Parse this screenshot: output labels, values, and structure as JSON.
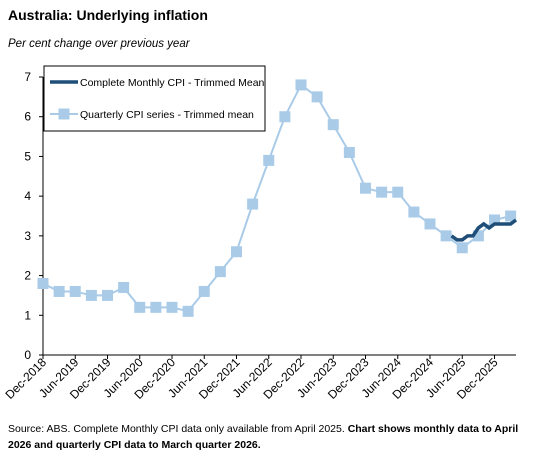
{
  "chart_data": {
    "type": "line",
    "title": "Australia: Underlying inflation",
    "subtitle": "Per cent change over previous year",
    "note": "Source: ABS.  Complete Monthly CPI data only available from April 2025.",
    "note_bold": "Chart shows monthly data to April 2026 and quarterly CPI data to March quarter 2026.",
    "xlim": [
      "Dec-2018",
      "Apr-2026"
    ],
    "xticks": [
      "Dec-2018",
      "Jun-2019",
      "Dec-2019",
      "Jun-2020",
      "Dec-2020",
      "Jun-2021",
      "Dec-2021",
      "Jun-2022",
      "Dec-2022",
      "Jun-2023",
      "Dec-2023",
      "Jun-2024",
      "Dec-2024",
      "Jun-2025",
      "Dec-2025"
    ],
    "ylim": [
      0,
      7
    ],
    "yticks": [
      0,
      1,
      2,
      3,
      4,
      5,
      6,
      7
    ],
    "legend": "upper-left",
    "series": [
      {
        "name": "Complete Monthly CPI - Trimmed Mean",
        "color": "#1f4e79",
        "marker": "none",
        "x": [
          "Apr-2025",
          "May-2025",
          "Jun-2025",
          "Jul-2025",
          "Aug-2025",
          "Sep-2025",
          "Oct-2025",
          "Nov-2025",
          "Dec-2025",
          "Jan-2026",
          "Feb-2026",
          "Mar-2026",
          "Apr-2026"
        ],
        "values": [
          3.0,
          2.9,
          2.9,
          3.0,
          3.0,
          3.2,
          3.3,
          3.2,
          3.3,
          3.3,
          3.3,
          3.3,
          3.4
        ]
      },
      {
        "name": "Quarterly CPI series - Trimmed mean",
        "color": "#a9cbe8",
        "marker": "square",
        "x": [
          "Dec-2018",
          "Mar-2019",
          "Jun-2019",
          "Sep-2019",
          "Dec-2019",
          "Mar-2020",
          "Jun-2020",
          "Sep-2020",
          "Dec-2020",
          "Mar-2021",
          "Jun-2021",
          "Sep-2021",
          "Dec-2021",
          "Mar-2022",
          "Jun-2022",
          "Sep-2022",
          "Dec-2022",
          "Mar-2023",
          "Jun-2023",
          "Sep-2023",
          "Dec-2023",
          "Mar-2024",
          "Jun-2024",
          "Sep-2024",
          "Dec-2024",
          "Mar-2025",
          "Jun-2025",
          "Sep-2025",
          "Dec-2025",
          "Mar-2026"
        ],
        "values": [
          1.8,
          1.6,
          1.6,
          1.5,
          1.5,
          1.7,
          1.2,
          1.2,
          1.2,
          1.1,
          1.6,
          2.1,
          2.6,
          3.8,
          4.9,
          6.0,
          6.8,
          6.5,
          5.8,
          5.1,
          4.2,
          4.1,
          4.1,
          3.6,
          3.3,
          3.0,
          2.7,
          3.0,
          3.4,
          3.5
        ]
      }
    ]
  }
}
